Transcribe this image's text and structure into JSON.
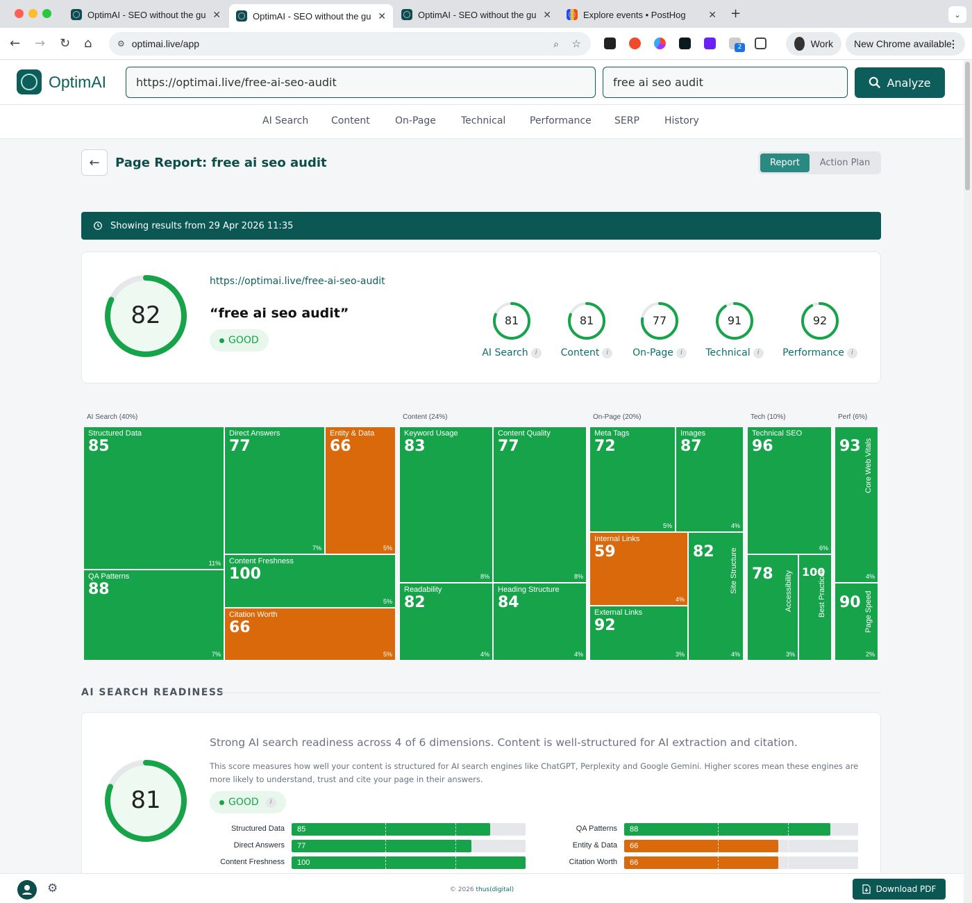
{
  "browser": {
    "tabs": [
      {
        "title": "OptimAI - SEO without the gu"
      },
      {
        "title": "OptimAI - SEO without the gu"
      },
      {
        "title": "OptimAI - SEO without the gu"
      },
      {
        "title": "Explore events • PostHog"
      }
    ],
    "url": "optimai.live/app",
    "profile": "Work",
    "update": "New Chrome available",
    "ext_badge": "2"
  },
  "app": {
    "logo": "OptimAI",
    "url_input": "https://optimai.live/free-ai-seo-audit",
    "keyword_input": "free ai seo audit",
    "analyze": "Analyze",
    "nav": [
      "AI Search",
      "Content",
      "On-Page",
      "Technical",
      "Performance",
      "SERP",
      "History"
    ]
  },
  "report": {
    "title": "Page Report: free ai seo audit",
    "view_report": "Report",
    "view_action": "Action Plan",
    "banner": "Showing results from 29 Apr 2026 11:35",
    "url": "https://optimai.live/free-ai-seo-audit",
    "keyword": "“free ai seo audit”",
    "overall": 82,
    "grade": "GOOD",
    "subscores": [
      {
        "label": "AI Search",
        "value": 81
      },
      {
        "label": "Content",
        "value": 81
      },
      {
        "label": "On-Page",
        "value": 77
      },
      {
        "label": "Technical",
        "value": 91
      },
      {
        "label": "Performance",
        "value": 92
      }
    ]
  },
  "treemap": {
    "groups": [
      "AI Search (40%)",
      "Content (24%)",
      "On-Page (20%)",
      "Tech (10%)",
      "Perf (6%)"
    ],
    "cells": [
      {
        "name": "Structured Data",
        "score": 85,
        "weight": "11%"
      },
      {
        "name": "Direct Answers",
        "score": 77,
        "weight": "7%"
      },
      {
        "name": "Entity & Data",
        "score": 66,
        "weight": "5%"
      },
      {
        "name": "QA Patterns",
        "score": 88,
        "weight": "7%"
      },
      {
        "name": "Content Freshness",
        "score": 100,
        "weight": "5%"
      },
      {
        "name": "Citation Worth",
        "score": 66,
        "weight": "5%"
      },
      {
        "name": "Keyword Usage",
        "score": 83,
        "weight": "8%"
      },
      {
        "name": "Content Quality",
        "score": 77,
        "weight": "8%"
      },
      {
        "name": "Readability",
        "score": 82,
        "weight": "4%"
      },
      {
        "name": "Heading Structure",
        "score": 84,
        "weight": "4%"
      },
      {
        "name": "Meta Tags",
        "score": 72,
        "weight": "5%"
      },
      {
        "name": "Images",
        "score": 87,
        "weight": "4%"
      },
      {
        "name": "Internal Links",
        "score": 59,
        "weight": "4%"
      },
      {
        "name": "Site Structure",
        "score": 82,
        "weight": "4%"
      },
      {
        "name": "External Links",
        "score": 92,
        "weight": "3%"
      },
      {
        "name": "Technical SEO",
        "score": 96,
        "weight": "6%"
      },
      {
        "name": "Accessibility",
        "score": 78,
        "weight": "3%"
      },
      {
        "name": "Best Practices",
        "score": 100,
        "weight": ""
      },
      {
        "name": "Core Web Vitals",
        "score": 93,
        "weight": "4%"
      },
      {
        "name": "Page Speed",
        "score": 90,
        "weight": "2%"
      }
    ]
  },
  "ai_readiness": {
    "section_title": "AI SEARCH READINESS",
    "score": 81,
    "grade": "GOOD",
    "headline": "Strong AI search readiness across 4 of 6 dimensions. Content is well-structured for AI extraction and citation.",
    "description": "This score measures how well your content is structured for AI search engines like ChatGPT, Perplexity and Google Gemini. Higher scores mean these engines are more likely to understand, trust and cite your page in their answers.",
    "bars": [
      {
        "label": "Structured Data",
        "value": 85
      },
      {
        "label": "Direct Answers",
        "value": 77
      },
      {
        "label": "Content Freshness",
        "value": 100
      },
      {
        "label": "QA Patterns",
        "value": 88
      },
      {
        "label": "Entity & Data",
        "value": 66
      },
      {
        "label": "Citation Worth",
        "value": 66
      }
    ]
  },
  "footer": {
    "copyright": "© 2026 ",
    "brand": "thus(digital)",
    "download": "Download PDF"
  },
  "colors": {
    "good": "#16a34a",
    "warn": "#d9690b",
    "brand": "#0d5e5a"
  }
}
